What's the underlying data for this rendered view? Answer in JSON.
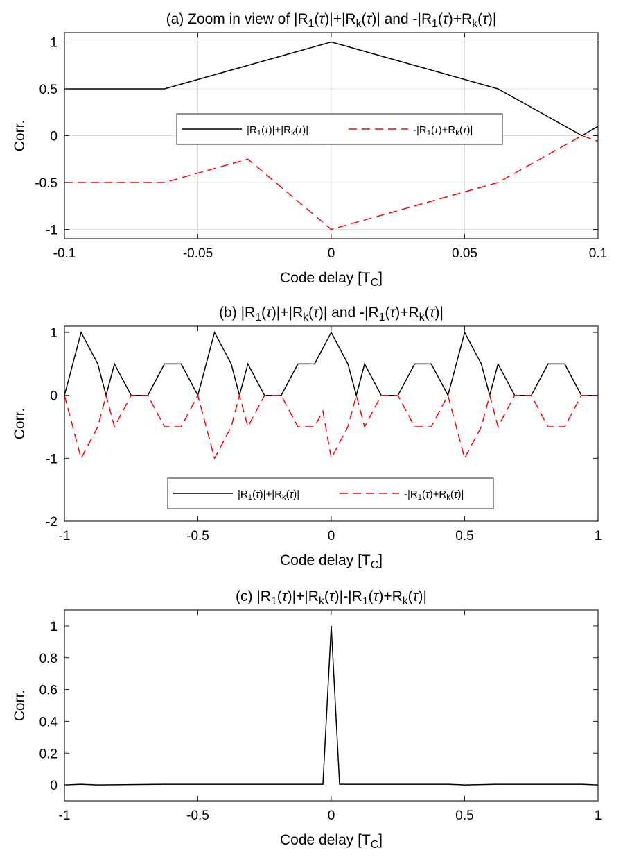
{
  "chart_data": [
    {
      "type": "line",
      "title": "(a) Zoom in view of |R_1(τ)|+|R_k(τ)| and -|R_1(τ)+R_k(τ)|",
      "title_parts": [
        {
          "t": "(a) Zoom in view of |R"
        },
        {
          "t": "1",
          "s": "sub"
        },
        {
          "t": "("
        },
        {
          "t": "τ",
          "s": "it"
        },
        {
          "t": ")|+|R"
        },
        {
          "t": "k",
          "s": "sub"
        },
        {
          "t": "("
        },
        {
          "t": "τ",
          "s": "it"
        },
        {
          "t": ")| and -|R"
        },
        {
          "t": "1",
          "s": "sub"
        },
        {
          "t": "("
        },
        {
          "t": "τ",
          "s": "it"
        },
        {
          "t": ")+R"
        },
        {
          "t": "k",
          "s": "sub"
        },
        {
          "t": "("
        },
        {
          "t": "τ",
          "s": "it"
        },
        {
          "t": ")|"
        }
      ],
      "xlabel": "Code delay [T_C]",
      "xlabel_parts": [
        {
          "t": "Code delay [T"
        },
        {
          "t": "C",
          "s": "sub"
        },
        {
          "t": "]"
        }
      ],
      "ylabel": "Corr.",
      "xlim": [
        -0.1,
        0.1
      ],
      "ylim": [
        -1.1,
        1.1
      ],
      "xticks": [
        -0.1,
        -0.05,
        0,
        0.05,
        0.1
      ],
      "xtick_labels": [
        "-0.1",
        "-0.05",
        "0",
        "0.05",
        "0.1"
      ],
      "yticks": [
        -1,
        -0.5,
        0,
        0.5,
        1
      ],
      "ytick_labels": [
        "-1",
        "-0.5",
        "0",
        "0.5",
        "1"
      ],
      "grid": true,
      "legend": {
        "position": "center",
        "orientation": "horizontal"
      },
      "series": [
        {
          "name": "|R_1(τ)|+|R_k(τ)|",
          "name_parts": [
            {
              "t": "|R"
            },
            {
              "t": "1",
              "s": "sub"
            },
            {
              "t": "("
            },
            {
              "t": "τ",
              "s": "it"
            },
            {
              "t": ")|+|R"
            },
            {
              "t": "k",
              "s": "sub"
            },
            {
              "t": "("
            },
            {
              "t": "τ",
              "s": "it"
            },
            {
              "t": ")|"
            }
          ],
          "color": "#000000",
          "style": "solid",
          "x": [
            -0.1,
            -0.0625,
            0,
            0.0625,
            0.094,
            0.1
          ],
          "y": [
            0.5,
            0.5,
            1,
            0.5,
            0,
            0.1
          ]
        },
        {
          "name": "-|R_1(τ)+R_k(τ)|",
          "name_parts": [
            {
              "t": "-|R"
            },
            {
              "t": "1",
              "s": "sub"
            },
            {
              "t": "("
            },
            {
              "t": "τ",
              "s": "it"
            },
            {
              "t": ")+R"
            },
            {
              "t": "k",
              "s": "sub"
            },
            {
              "t": "("
            },
            {
              "t": "τ",
              "s": "it"
            },
            {
              "t": ")|"
            }
          ],
          "color": "#ff0000",
          "style": "dashed",
          "x": [
            -0.1,
            -0.0625,
            -0.03125,
            0,
            0.0625,
            0.094,
            0.1
          ],
          "y": [
            -0.5,
            -0.5,
            -0.25,
            -1,
            -0.5,
            0,
            -0.06
          ]
        }
      ]
    },
    {
      "type": "line",
      "title": "(b) |R_1(τ)|+|R_k(τ)| and -|R_1(τ)+R_k(τ)|",
      "title_parts": [
        {
          "t": "(b) |R"
        },
        {
          "t": "1",
          "s": "sub"
        },
        {
          "t": "("
        },
        {
          "t": "τ",
          "s": "it"
        },
        {
          "t": ")|+|R"
        },
        {
          "t": "k",
          "s": "sub"
        },
        {
          "t": "("
        },
        {
          "t": "τ",
          "s": "it"
        },
        {
          "t": ")| and -|R"
        },
        {
          "t": "1",
          "s": "sub"
        },
        {
          "t": "("
        },
        {
          "t": "τ",
          "s": "it"
        },
        {
          "t": ")+R"
        },
        {
          "t": "k",
          "s": "sub"
        },
        {
          "t": "("
        },
        {
          "t": "τ",
          "s": "it"
        },
        {
          "t": ")|"
        }
      ],
      "xlabel": "Code delay [T_C]",
      "xlabel_parts": [
        {
          "t": "Code delay [T"
        },
        {
          "t": "C",
          "s": "sub"
        },
        {
          "t": "]"
        }
      ],
      "ylabel": "Corr.",
      "xlim": [
        -1,
        1
      ],
      "ylim": [
        -2,
        1.1
      ],
      "xticks": [
        -1,
        -0.5,
        0,
        0.5,
        1
      ],
      "xtick_labels": [
        "-1",
        "-0.5",
        "0",
        "0.5",
        "1"
      ],
      "yticks": [
        -2,
        -1,
        0,
        1
      ],
      "ytick_labels": [
        "-2",
        "-1",
        "0",
        "1"
      ],
      "grid": false,
      "legend": {
        "position": "bottom-center",
        "orientation": "horizontal"
      },
      "series": [
        {
          "name": "|R_1(τ)|+|R_k(τ)|",
          "name_parts": [
            {
              "t": "|R"
            },
            {
              "t": "1",
              "s": "sub"
            },
            {
              "t": "("
            },
            {
              "t": "τ",
              "s": "it"
            },
            {
              "t": ")|+|R"
            },
            {
              "t": "k",
              "s": "sub"
            },
            {
              "t": "("
            },
            {
              "t": "τ",
              "s": "it"
            },
            {
              "t": ")|"
            }
          ],
          "color": "#000000",
          "style": "solid",
          "x": [
            -1,
            -0.9375,
            -0.875,
            -0.844,
            -0.8125,
            -0.75,
            -0.6875,
            -0.625,
            -0.5625,
            -0.5,
            -0.4375,
            -0.375,
            -0.344,
            -0.3125,
            -0.25,
            -0.1875,
            -0.125,
            -0.0625,
            0,
            0.0625,
            0.094,
            0.125,
            0.1875,
            0.25,
            0.3125,
            0.375,
            0.4375,
            0.5,
            0.5625,
            0.594,
            0.625,
            0.6875,
            0.75,
            0.8125,
            0.875,
            0.9375,
            1
          ],
          "y": [
            0,
            1,
            0.5,
            0,
            0.5,
            0,
            0,
            0.5,
            0.5,
            0,
            1,
            0.5,
            0,
            0.5,
            0,
            0,
            0.5,
            0.5,
            1,
            0.5,
            0,
            0.5,
            0,
            0,
            0.5,
            0.5,
            0,
            1,
            0.5,
            0,
            0.5,
            0,
            0,
            0.5,
            0.5,
            0,
            0
          ]
        },
        {
          "name": "-|R_1(τ)+R_k(τ)|",
          "name_parts": [
            {
              "t": "-|R"
            },
            {
              "t": "1",
              "s": "sub"
            },
            {
              "t": "("
            },
            {
              "t": "τ",
              "s": "it"
            },
            {
              "t": ")+R"
            },
            {
              "t": "k",
              "s": "sub"
            },
            {
              "t": "("
            },
            {
              "t": "τ",
              "s": "it"
            },
            {
              "t": ")|"
            }
          ],
          "color": "#ff0000",
          "style": "dashed",
          "x": [
            -1,
            -0.9375,
            -0.875,
            -0.844,
            -0.8125,
            -0.75,
            -0.6875,
            -0.625,
            -0.5625,
            -0.5,
            -0.4375,
            -0.375,
            -0.344,
            -0.3125,
            -0.25,
            -0.1875,
            -0.125,
            -0.0625,
            -0.03125,
            0,
            0.0625,
            0.094,
            0.125,
            0.1875,
            0.25,
            0.3125,
            0.375,
            0.4375,
            0.5,
            0.5625,
            0.594,
            0.625,
            0.6875,
            0.75,
            0.8125,
            0.875,
            0.9375,
            1
          ],
          "y": [
            0,
            -1,
            -0.5,
            0,
            -0.5,
            0,
            0,
            -0.5,
            -0.5,
            0,
            -1,
            -0.5,
            0,
            -0.5,
            0,
            0,
            -0.5,
            -0.5,
            -0.25,
            -1,
            -0.5,
            0,
            -0.5,
            0,
            0,
            -0.5,
            -0.5,
            0,
            -1,
            -0.5,
            0,
            -0.5,
            0,
            0,
            -0.5,
            -0.5,
            0,
            0
          ]
        }
      ]
    },
    {
      "type": "line",
      "title": "(c) |R_1(τ)|+|R_k(τ)|-|R_1(τ)+R_k(τ)|",
      "title_parts": [
        {
          "t": "(c) |R"
        },
        {
          "t": "1",
          "s": "sub"
        },
        {
          "t": "("
        },
        {
          "t": "τ",
          "s": "it"
        },
        {
          "t": ")|+|R"
        },
        {
          "t": "k",
          "s": "sub"
        },
        {
          "t": "("
        },
        {
          "t": "τ",
          "s": "it"
        },
        {
          "t": ")|-|R"
        },
        {
          "t": "1",
          "s": "sub"
        },
        {
          "t": "("
        },
        {
          "t": "τ",
          "s": "it"
        },
        {
          "t": ")+R"
        },
        {
          "t": "k",
          "s": "sub"
        },
        {
          "t": "("
        },
        {
          "t": "τ",
          "s": "it"
        },
        {
          "t": ")|"
        }
      ],
      "xlabel": "Code delay [T_C]",
      "xlabel_parts": [
        {
          "t": "Code delay [T"
        },
        {
          "t": "C",
          "s": "sub"
        },
        {
          "t": "]"
        }
      ],
      "ylabel": "Corr.",
      "xlim": [
        -1,
        1
      ],
      "ylim": [
        -0.1,
        1.1
      ],
      "xticks": [
        -1,
        -0.5,
        0,
        0.5,
        1
      ],
      "xtick_labels": [
        "-1",
        "-0.5",
        "0",
        "0.5",
        "1"
      ],
      "yticks": [
        0,
        0.2,
        0.4,
        0.6,
        0.8,
        1
      ],
      "ytick_labels": [
        "0",
        "0.2",
        "0.4",
        "0.6",
        "0.8",
        "1"
      ],
      "grid": false,
      "series": [
        {
          "color": "#000000",
          "style": "solid",
          "x": [
            -1,
            -0.9375,
            -0.875,
            -0.625,
            -0.4375,
            -0.125,
            -0.03125,
            0,
            0.03125,
            0.125,
            0.4375,
            0.5,
            0.625,
            0.9375,
            1
          ],
          "y": [
            0,
            0.004,
            0,
            0.004,
            0.004,
            0.004,
            0.004,
            1,
            0.004,
            0.004,
            0.004,
            0,
            0.004,
            0.004,
            0
          ]
        }
      ]
    }
  ]
}
